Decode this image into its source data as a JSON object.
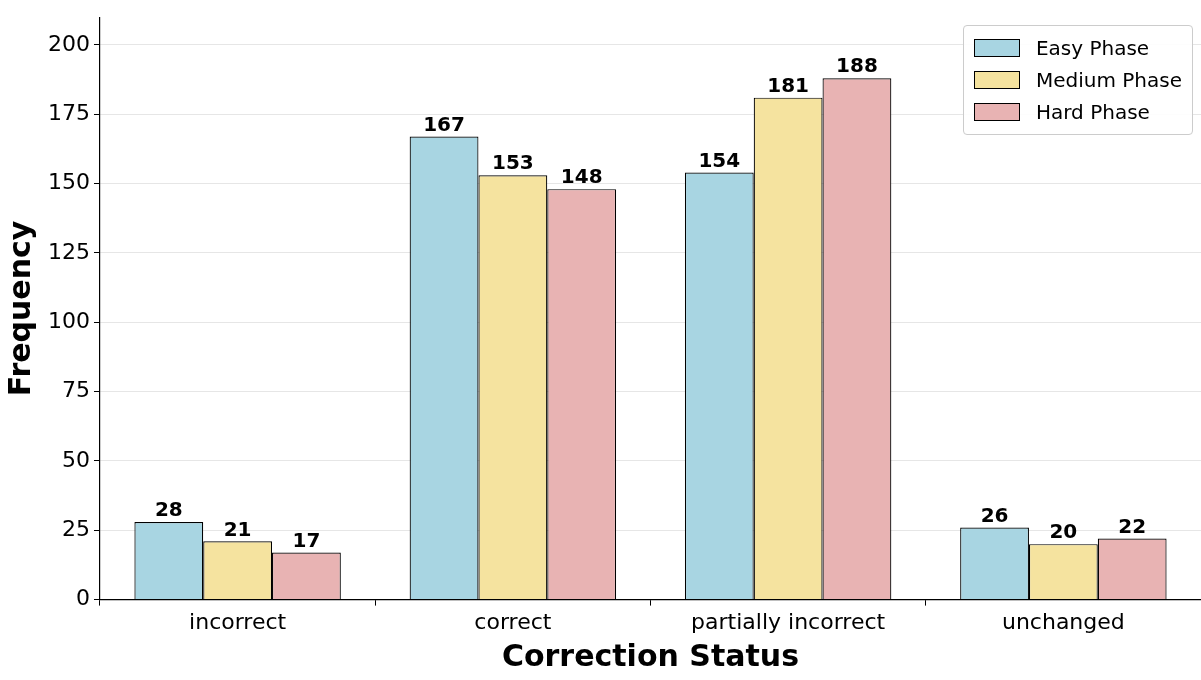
{
  "chart_data": {
    "type": "bar",
    "xlabel": "Correction Status",
    "ylabel": "Frequency",
    "categories": [
      "incorrect",
      "correct",
      "partially incorrect",
      "unchanged"
    ],
    "series": [
      {
        "name": "Easy Phase",
        "color": "#a8d5e2",
        "values": [
          28,
          167,
          154,
          26
        ]
      },
      {
        "name": "Medium Phase",
        "color": "#f5e39f",
        "values": [
          21,
          153,
          181,
          20
        ]
      },
      {
        "name": "Hard Phase",
        "color": "#e8b3b3",
        "values": [
          17,
          148,
          188,
          22
        ]
      }
    ],
    "ylim": [
      0,
      210
    ],
    "yticks": [
      0,
      25,
      50,
      75,
      100,
      125,
      150,
      175,
      200
    ],
    "grid": "y",
    "legend": "top right",
    "data_labels": true
  }
}
